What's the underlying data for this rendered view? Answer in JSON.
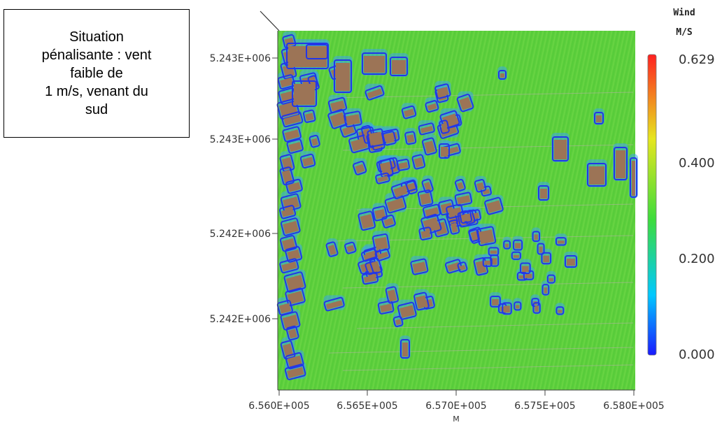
{
  "caption": {
    "lines": [
      "Situation",
      "pénalisante : vent",
      "faible de",
      "1 m/s, venant du",
      "sud"
    ]
  },
  "plot": {
    "y_ticks": [
      "5.243E+006",
      "5.243E+006",
      "5.242E+006",
      "5.242E+006"
    ],
    "x_ticks": [
      "6.560E+005",
      "6.565E+005",
      "6.570E+005",
      "6.575E+005",
      "6.580E+005"
    ],
    "x_unit": "M"
  },
  "colorbar": {
    "title": "Wind",
    "unit": "M/S",
    "labels": [
      "0.629",
      "0.400",
      "0.200",
      "0.000"
    ],
    "colors": [
      "#1a1aff",
      "#00c8ff",
      "#3cdc3c",
      "#e6e61e",
      "#ff2020"
    ],
    "values": [
      0.629,
      0.4,
      0.2,
      0.0
    ]
  },
  "map": {
    "field_color": "#5ccf3c",
    "building_color": "#9c7456",
    "wake_color": "#2236e8"
  }
}
